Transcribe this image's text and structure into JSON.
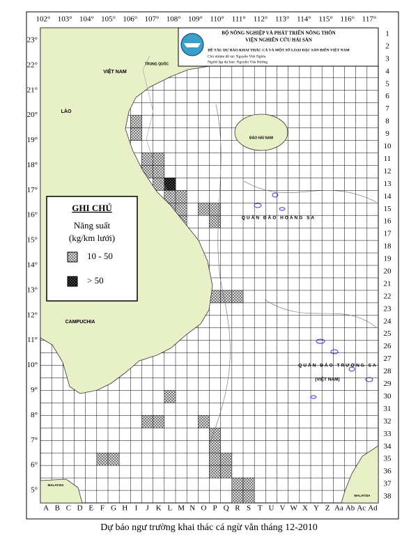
{
  "longitude_labels": [
    "102°",
    "103°",
    "104°",
    "105°",
    "106°",
    "107°",
    "108°",
    "109°",
    "110°",
    "111°",
    "112°",
    "113°",
    "114°",
    "115°",
    "116°",
    "117°"
  ],
  "latitude_labels": [
    "23°",
    "22°",
    "21°",
    "20°",
    "19°",
    "18°",
    "17°",
    "16°",
    "15°",
    "14°",
    "13°",
    "12°",
    "11°",
    "10°",
    "9°",
    "8°",
    "7°",
    "6°",
    "5°"
  ],
  "row_labels": [
    1,
    2,
    3,
    4,
    5,
    6,
    7,
    8,
    9,
    10,
    11,
    12,
    13,
    14,
    15,
    16,
    17,
    18,
    19,
    20,
    21,
    22,
    23,
    24,
    25,
    26,
    27,
    28,
    29,
    30,
    31,
    32,
    33,
    34,
    35,
    36,
    37,
    38
  ],
  "column_labels": [
    "A",
    "B",
    "C",
    "D",
    "E",
    "F",
    "G",
    "H",
    "I",
    "J",
    "K",
    "L",
    "M",
    "N",
    "O",
    "P",
    "Q",
    "R",
    "S",
    "T",
    "U",
    "V",
    "W",
    "X",
    "Y",
    "Z",
    "Aa",
    "Ab",
    "Ac",
    "Ad"
  ],
  "header": {
    "ministry": "BỘ NÔNG NGHIỆP VÀ PHÁT TRIỂN NÔNG THÔN",
    "institute": "VIỆN NGHIÊN CỨU HẢI SẢN",
    "project": "ĐỀ TÀI: DỰ BÁO KHAI THÁC CÁ VÀ MỘT SỐ LOẠI ĐẶC SẢN BIỂN VIỆT NAM",
    "lead": "Chủ nhiệm đề tài: Nguyễn Viết Nghĩa",
    "forecaster": "Người lập dự báo: Nguyễn Văn Hưởng"
  },
  "legend": {
    "title": "GHI CHÚ",
    "subtitle": "Năng suất",
    "unit": "(kg/km lưới)",
    "items": [
      {
        "label": "10 - 50",
        "cells": [
          [
            "I",
            8
          ],
          [
            "I",
            9
          ],
          [
            "J",
            11
          ],
          [
            "K",
            11
          ],
          [
            "J",
            12
          ],
          [
            "K",
            12
          ],
          [
            "K",
            13
          ],
          [
            "L",
            14
          ],
          [
            "M",
            14
          ],
          [
            "L",
            15
          ],
          [
            "M",
            15
          ],
          [
            "O",
            15
          ],
          [
            "P",
            15
          ],
          [
            "M",
            16
          ],
          [
            "P",
            16
          ],
          [
            "P",
            22
          ],
          [
            "Q",
            22
          ],
          [
            "R",
            22
          ],
          [
            "L",
            30
          ],
          [
            "J",
            32
          ],
          [
            "K",
            32
          ],
          [
            "O",
            32
          ],
          [
            "P",
            33
          ],
          [
            "P",
            34
          ],
          [
            "F",
            35
          ],
          [
            "G",
            35
          ],
          [
            "P",
            35
          ],
          [
            "Q",
            35
          ],
          [
            "P",
            36
          ],
          [
            "Q",
            36
          ],
          [
            "R",
            37
          ],
          [
            "S",
            37
          ],
          [
            "R",
            38
          ],
          [
            "S",
            38
          ]
        ]
      },
      {
        "label": "> 50",
        "cells": [
          [
            "L",
            13
          ]
        ]
      }
    ]
  },
  "map_labels": [
    "TRUNG QUỐC",
    "VIỆT NAM",
    "LÀO",
    "CAMPUCHIA",
    "ĐẢO HẢI NAM",
    "QUẦN ĐẢO HOÀNG SA",
    "QUẦN ĐẢO TRƯỜNG SA",
    "(VIỆT NAM)",
    "MALAYSIA",
    "MALAYSIA"
  ],
  "caption": "Dự báo ngư trường khai thác cá ngừ vằn tháng 12-2010"
}
